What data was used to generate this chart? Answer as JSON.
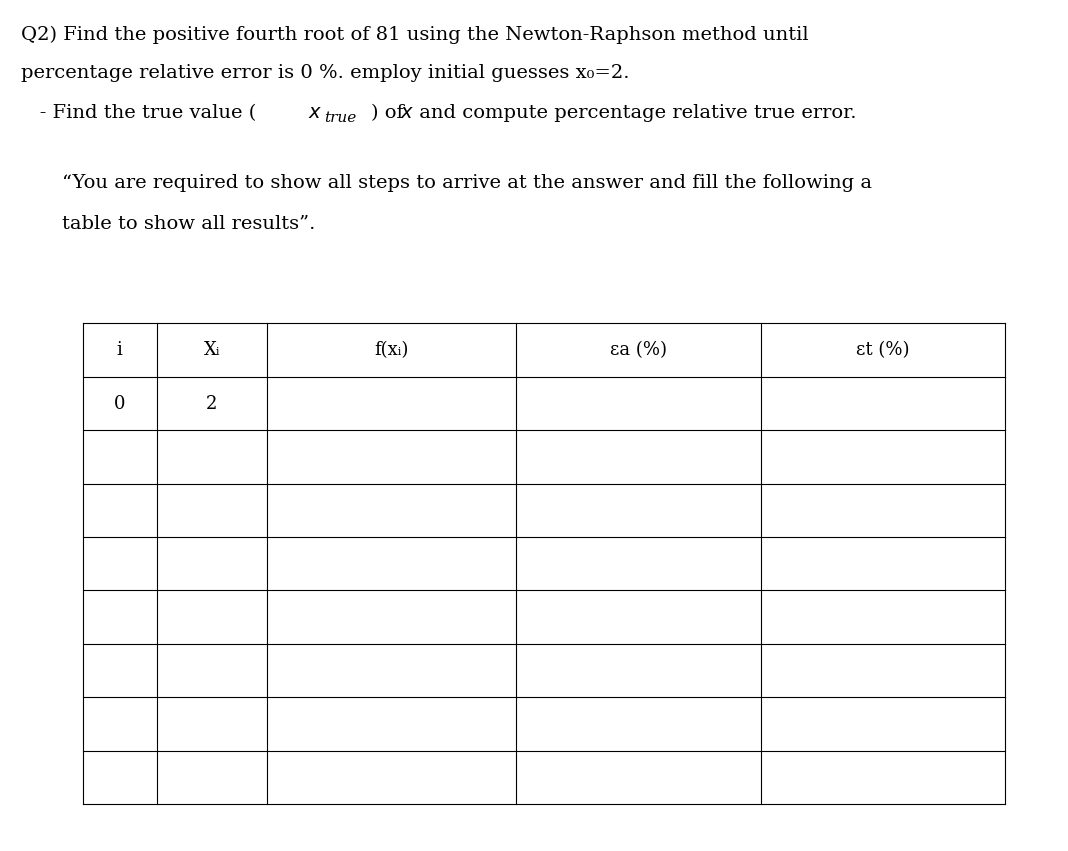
{
  "title_line1": "Q2) Find the positive fourth root of 81 using the Newton-Raphson method until",
  "title_line2": "percentage relative error is 0 %. employ initial guesses x₀=2.",
  "title_line3": "   - Find the true value (x",
  "title_line3_true": "true",
  "title_line3_rest": ") of x and compute percentage relative true error.",
  "quote_line1": "“You are required to show all steps to arrive at the answer and fill the following a",
  "quote_line2": "table to show all results”.",
  "col_headers": [
    "i",
    "Xᵢ",
    "f(xᵢ)",
    "εa (%)",
    "εt (%)"
  ],
  "first_row": [
    "0",
    "2",
    "",
    "",
    ""
  ],
  "num_empty_rows": 7,
  "num_cols": 5,
  "background_color": "#ffffff",
  "text_color": "#000000",
  "font_size_title": 14,
  "font_size_table": 13
}
